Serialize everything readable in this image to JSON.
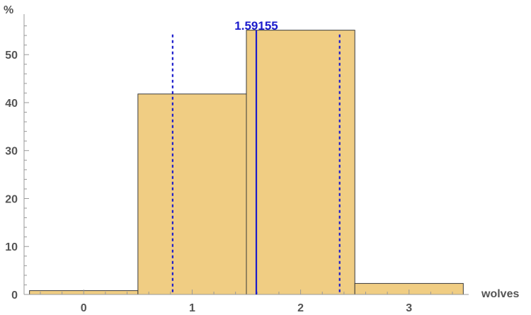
{
  "chart_data": {
    "type": "bar",
    "title": "",
    "xlabel": "wolves",
    "ylabel": "%",
    "categories": [
      "0",
      "1",
      "2",
      "3"
    ],
    "x": [
      0,
      1,
      2,
      3
    ],
    "values": [
      0.8,
      41.8,
      55.1,
      2.3
    ],
    "xlim": [
      -0.55,
      3.55
    ],
    "ylim": [
      0,
      58
    ],
    "y_ticks": [
      "0",
      "10",
      "20",
      "30",
      "40",
      "50"
    ],
    "y_tick_values": [
      0,
      10,
      20,
      30,
      40,
      50
    ],
    "grid": false,
    "bar_color": "#f0cd83",
    "bar_edge_color": "#3a3a3a",
    "mean": {
      "value": 1.59155,
      "label": "1.59155",
      "color": "#1a1acc"
    },
    "sd_lines": {
      "low": 0.82,
      "high": 2.36,
      "color": "#1a1acc",
      "style": "dotted"
    }
  }
}
